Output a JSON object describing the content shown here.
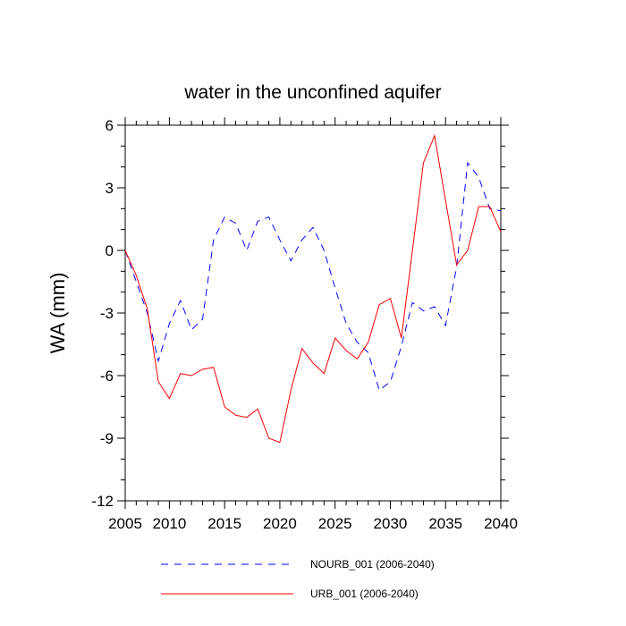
{
  "chart_data": {
    "type": "line",
    "title": "water in the unconfined aquifer",
    "xlabel": "",
    "ylabel": "WA  (mm)",
    "xlim": [
      2006,
      2040
    ],
    "ylim": [
      -12,
      6
    ],
    "xticks": [
      2005,
      2010,
      2015,
      2020,
      2025,
      2030,
      2035,
      2040
    ],
    "yticks": [
      -12,
      -9,
      -6,
      -3,
      0,
      3,
      6
    ],
    "x": [
      2006,
      2007,
      2008,
      2009,
      2010,
      2011,
      2012,
      2013,
      2014,
      2015,
      2016,
      2017,
      2018,
      2019,
      2020,
      2021,
      2022,
      2023,
      2024,
      2025,
      2026,
      2027,
      2028,
      2029,
      2030,
      2031,
      2032,
      2033,
      2034,
      2035,
      2036,
      2037,
      2038,
      2039,
      2040
    ],
    "series": [
      {
        "name": "NOURB_001 (2006-2040)",
        "color": "#0000ff",
        "style": "dashed",
        "values": [
          0.0,
          -1.5,
          -3.0,
          -5.3,
          -3.5,
          -2.4,
          -3.8,
          -3.3,
          0.5,
          1.6,
          1.3,
          0.0,
          1.4,
          1.6,
          0.5,
          -0.5,
          0.5,
          1.1,
          0.0,
          -1.8,
          -3.5,
          -4.4,
          -4.9,
          -6.7,
          -6.3,
          -4.6,
          -2.5,
          -2.9,
          -2.7,
          -3.6,
          -0.8,
          4.2,
          3.5,
          2.0,
          1.9
        ]
      },
      {
        "name": "URB_001 (2006-2040)",
        "color": "#ff0000",
        "style": "solid",
        "values": [
          0.0,
          -1.2,
          -2.8,
          -6.3,
          -7.1,
          -5.9,
          -6.0,
          -5.7,
          -5.6,
          -7.5,
          -7.9,
          -8.0,
          -7.6,
          -9.0,
          -9.2,
          -6.7,
          -4.7,
          -5.4,
          -5.9,
          -4.2,
          -4.8,
          -5.2,
          -4.4,
          -2.6,
          -2.3,
          -4.2,
          0.0,
          4.2,
          5.5,
          2.4,
          -0.7,
          0.0,
          2.1,
          2.1,
          0.9
        ]
      }
    ],
    "legend": "bottom"
  }
}
